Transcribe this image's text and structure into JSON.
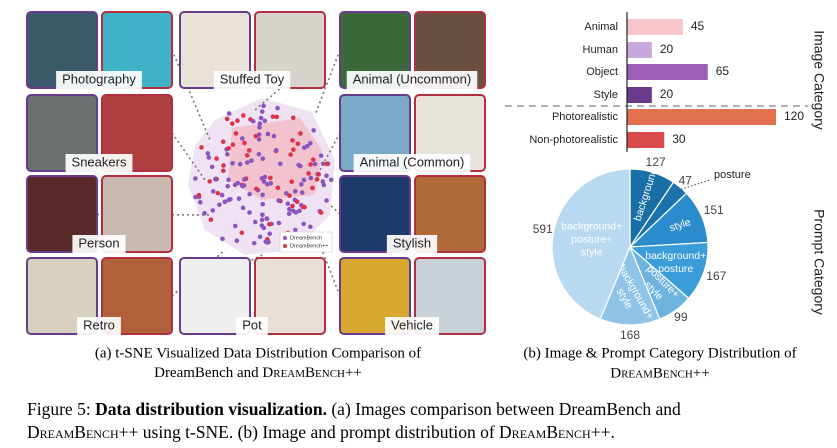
{
  "panel_a": {
    "tiles": [
      "Photography",
      "Stuffed Toy",
      "Animal (Uncommon)",
      "Sneakers",
      "Animal (Common)",
      "Person",
      "Stylish",
      "Retro",
      "Pot",
      "Vehicle"
    ],
    "legend": [
      "DreamBench",
      "DreamBench++"
    ],
    "caption": [
      "(a) t-SNE Visualized Data Distribution Comparison of",
      "DreamBench and ",
      "DreamBench++"
    ]
  },
  "chart_data": [
    {
      "type": "bar",
      "orientation": "horizontal",
      "axis_label": "Image Category",
      "categories": [
        "Animal",
        "Human",
        "Object",
        "Style",
        "Photorealistic",
        "Non-photorealistic"
      ],
      "values": [
        45,
        20,
        65,
        20,
        120,
        30
      ],
      "colors": [
        "#f8c5cb",
        "#c8a8dc",
        "#9b5fb8",
        "#6a3a8c",
        "#e3704f",
        "#d84a4a"
      ],
      "xlim": [
        0,
        125
      ]
    },
    {
      "type": "pie",
      "axis_label": "Prompt Category",
      "labels": [
        [
          "background"
        ],
        [
          "posture"
        ],
        [
          "style"
        ],
        [
          "background+",
          "posture"
        ],
        [
          "posture+",
          "style"
        ],
        [
          "background+",
          "style"
        ],
        [
          "background+",
          "posture+",
          "style"
        ]
      ],
      "values": [
        127,
        47,
        151,
        167,
        99,
        168,
        591
      ],
      "colors": [
        "#176fa6",
        "#1a73ad",
        "#2a8ccc",
        "#3a9cd8",
        "#6eb3df",
        "#8fc4e8",
        "#b9d9f0"
      ]
    }
  ],
  "caption_b": [
    "(b) Image & Prompt Category Distribution of",
    "DreamBench++"
  ],
  "figure_caption": [
    "Figure 5: ",
    "Data distribution visualization.",
    " (a) Images comparison between DreamBench and",
    "DreamBench++",
    " using t-SNE. (b) Image and prompt distribution of ",
    "DreamBench++",
    "."
  ]
}
